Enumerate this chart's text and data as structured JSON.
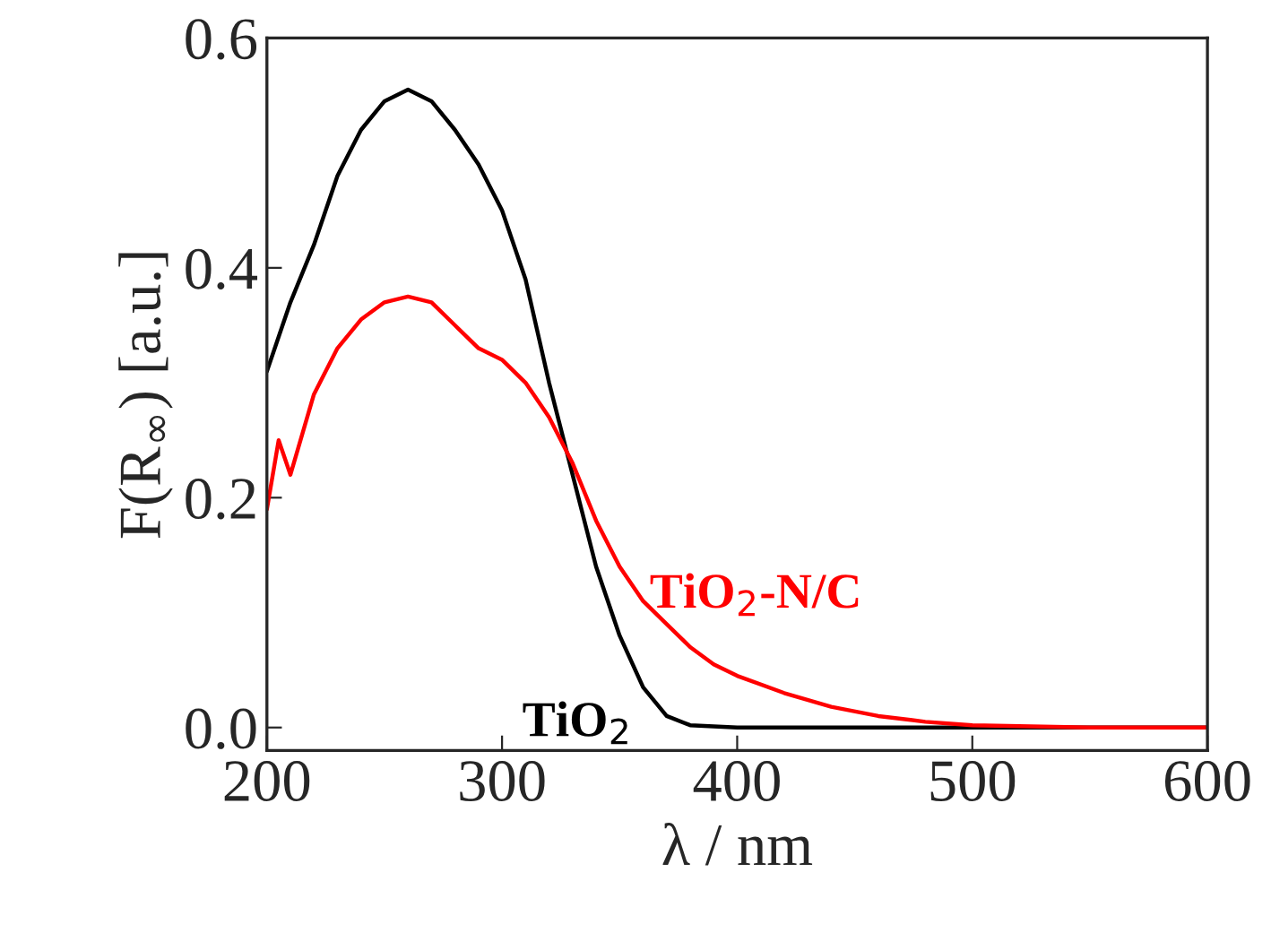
{
  "chart_data": {
    "type": "line",
    "xlabel": "λ / nm",
    "ylabel": "F(R$_{∞}$) [a.u.]",
    "xlim": [
      200,
      600
    ],
    "xticks": [
      200,
      300,
      400,
      500,
      600
    ],
    "ylim": [
      -0.02,
      0.6
    ],
    "yticks": [
      {
        "value": 0,
        "label": "0.0"
      },
      0.2,
      0.4,
      0.6
    ],
    "grid": false,
    "legend": false,
    "series": [
      {
        "name": "TiO$_{2}$",
        "color": "#000000",
        "x": [
          200,
          205,
          210,
          220,
          230,
          240,
          250,
          260,
          270,
          280,
          290,
          300,
          310,
          320,
          330,
          340,
          350,
          360,
          370,
          380,
          400,
          450,
          500,
          600
        ],
        "values": [
          0.31,
          0.34,
          0.37,
          0.42,
          0.48,
          0.52,
          0.545,
          0.555,
          0.545,
          0.52,
          0.49,
          0.45,
          0.39,
          0.3,
          0.22,
          0.14,
          0.08,
          0.035,
          0.01,
          0.002,
          0,
          0,
          0,
          0
        ]
      },
      {
        "name": "TiO$_{2}$-N/C",
        "color": "#ff0000",
        "x": [
          200,
          205,
          210,
          220,
          230,
          240,
          250,
          260,
          270,
          280,
          290,
          300,
          310,
          320,
          330,
          340,
          350,
          360,
          370,
          380,
          390,
          400,
          420,
          440,
          460,
          480,
          500,
          550,
          600
        ],
        "values": [
          0.19,
          0.25,
          0.22,
          0.29,
          0.33,
          0.355,
          0.37,
          0.375,
          0.37,
          0.35,
          0.33,
          0.32,
          0.3,
          0.27,
          0.23,
          0.18,
          0.14,
          0.11,
          0.09,
          0.07,
          0.055,
          0.045,
          0.03,
          0.018,
          0.01,
          0.005,
          0.002,
          0,
          0
        ]
      }
    ]
  }
}
